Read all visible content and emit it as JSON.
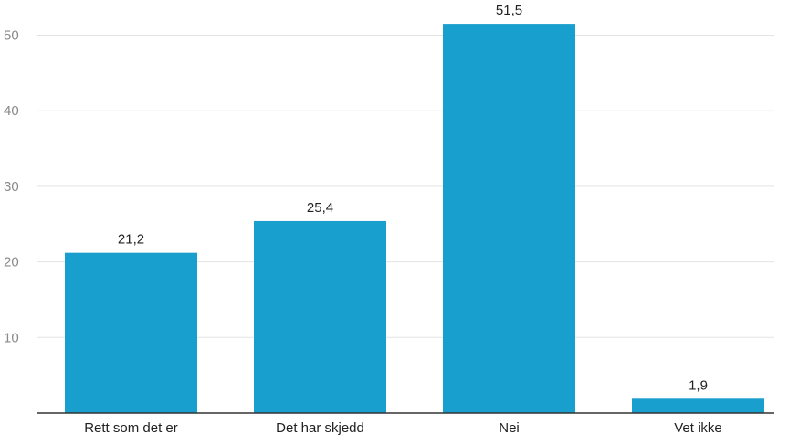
{
  "chart_data": {
    "type": "bar",
    "title": "",
    "xlabel": "",
    "ylabel": "",
    "categories": [
      "Rett som det er",
      "Det har skjedd",
      "Nei",
      "Vet ikke"
    ],
    "values": [
      21.2,
      25.4,
      51.5,
      1.9
    ],
    "value_labels": [
      "21,2",
      "25,4",
      "51,5",
      "1,9"
    ],
    "yticks": [
      10,
      20,
      30,
      40,
      50
    ],
    "ytick_labels": [
      "10",
      "20",
      "30",
      "40",
      "50"
    ],
    "ylim": [
      0,
      55
    ],
    "grid": true,
    "legend": "none",
    "bar_color": "#199fcd"
  }
}
